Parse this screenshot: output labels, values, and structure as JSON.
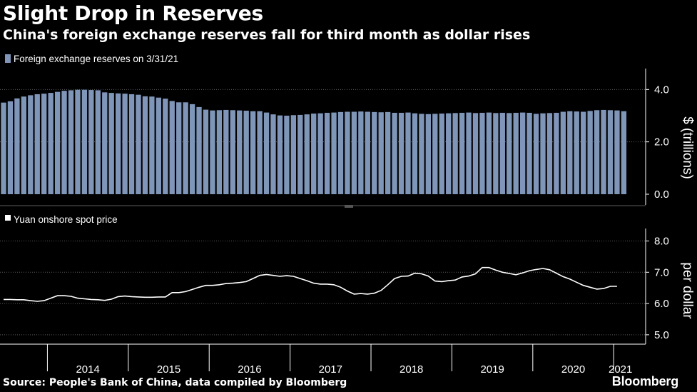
{
  "header": {
    "title": "Slight Drop in Reserves",
    "subtitle": "China's foreign exchange reserves fall for third month as dollar rises"
  },
  "footer": {
    "source": "Source: People's Bank of China, data compiled by Bloomberg",
    "brand": "Bloomberg"
  },
  "colors": {
    "background": "#000000",
    "bar": "#8096b9",
    "line": "#ffffff",
    "grid": "#5a5a5a"
  },
  "chart_data": [
    {
      "type": "bar",
      "legend": "Foreign exchange reserves on 3/31/21",
      "ylabel": "$ (trillions)",
      "ylim": [
        0,
        4.8
      ],
      "yticks": [
        "0.0",
        "2.0",
        "4.0"
      ],
      "x_start": "2013-06",
      "values": [
        3.5,
        3.55,
        3.66,
        3.73,
        3.78,
        3.82,
        3.84,
        3.87,
        3.91,
        3.95,
        3.97,
        3.99,
        3.99,
        3.98,
        3.97,
        3.89,
        3.87,
        3.85,
        3.84,
        3.82,
        3.8,
        3.74,
        3.73,
        3.69,
        3.65,
        3.56,
        3.51,
        3.51,
        3.44,
        3.33,
        3.23,
        3.2,
        3.21,
        3.22,
        3.21,
        3.2,
        3.19,
        3.17,
        3.17,
        3.12,
        3.05,
        3.01,
        3.0,
        3.02,
        3.03,
        3.05,
        3.08,
        3.09,
        3.11,
        3.12,
        3.14,
        3.15,
        3.15,
        3.16,
        3.15,
        3.14,
        3.13,
        3.14,
        3.11,
        3.11,
        3.12,
        3.09,
        3.07,
        3.06,
        3.07,
        3.08,
        3.09,
        3.1,
        3.11,
        3.12,
        3.1,
        3.11,
        3.12,
        3.1,
        3.11,
        3.1,
        3.11,
        3.12,
        3.11,
        3.07,
        3.09,
        3.1,
        3.11,
        3.15,
        3.17,
        3.16,
        3.15,
        3.18,
        3.21,
        3.22,
        3.21,
        3.2,
        3.17
      ]
    },
    {
      "type": "line",
      "legend": "Yuan onshore spot price",
      "ylabel": "per dollar",
      "ylim": [
        4.7,
        8.4
      ],
      "yticks": [
        "5.0",
        "6.0",
        "7.0",
        "8.0"
      ],
      "x_start": "2013-06",
      "values": [
        6.13,
        6.13,
        6.12,
        6.12,
        6.09,
        6.07,
        6.09,
        6.17,
        6.25,
        6.25,
        6.23,
        6.17,
        6.15,
        6.13,
        6.12,
        6.1,
        6.14,
        6.22,
        6.24,
        6.22,
        6.21,
        6.2,
        6.2,
        6.21,
        6.21,
        6.35,
        6.35,
        6.38,
        6.45,
        6.52,
        6.58,
        6.58,
        6.6,
        6.64,
        6.65,
        6.67,
        6.7,
        6.8,
        6.9,
        6.93,
        6.9,
        6.87,
        6.89,
        6.87,
        6.8,
        6.73,
        6.65,
        6.62,
        6.62,
        6.6,
        6.52,
        6.4,
        6.3,
        6.32,
        6.3,
        6.33,
        6.42,
        6.6,
        6.8,
        6.87,
        6.88,
        6.97,
        6.95,
        6.88,
        6.72,
        6.7,
        6.73,
        6.75,
        6.85,
        6.88,
        6.95,
        7.15,
        7.15,
        7.07,
        7.0,
        6.96,
        6.92,
        6.98,
        7.05,
        7.09,
        7.12,
        7.08,
        6.97,
        6.86,
        6.78,
        6.68,
        6.58,
        6.52,
        6.46,
        6.48,
        6.55,
        6.55
      ]
    }
  ],
  "x_axis": {
    "years": [
      "2014",
      "2015",
      "2016",
      "2017",
      "2018",
      "2019",
      "2020",
      "2021"
    ]
  }
}
